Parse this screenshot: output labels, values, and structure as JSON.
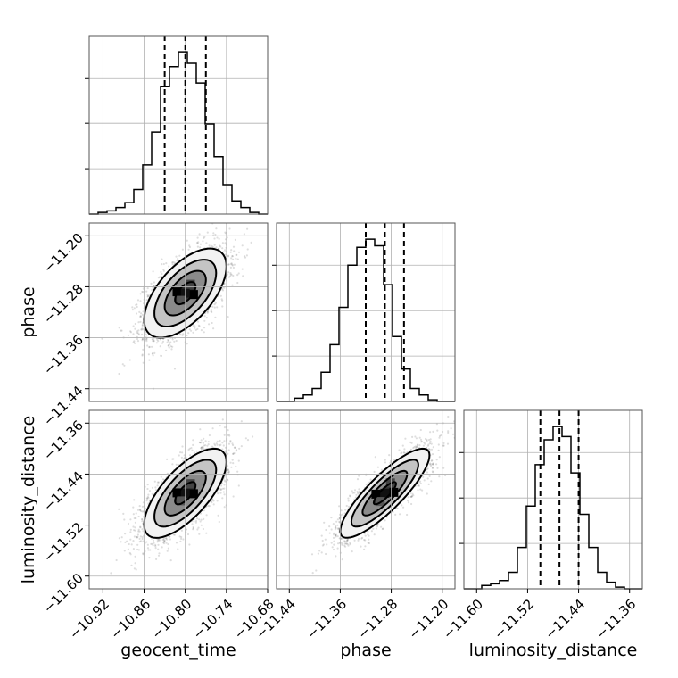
{
  "chart_data": {
    "type": "corner",
    "grid": true,
    "parameters": [
      {
        "name": "geocent_time",
        "range": [
          -10.94,
          -10.68
        ],
        "ticks": [
          -10.92,
          -10.86,
          -10.8,
          -10.74,
          -10.68
        ],
        "tick_labels": [
          "−10.92",
          "−10.86",
          "−10.80",
          "−10.74",
          "−10.68"
        ],
        "quantiles": [
          -10.83,
          -10.8,
          -10.77
        ],
        "hist_counts": [
          0,
          1,
          2,
          4,
          7,
          15,
          30,
          50,
          78,
          90,
          99,
          92,
          80,
          55,
          35,
          18,
          8,
          4,
          1,
          0
        ]
      },
      {
        "name": "phase",
        "range": [
          -11.46,
          -11.18
        ],
        "ticks": [
          -11.44,
          -11.36,
          -11.28,
          -11.2
        ],
        "tick_labels": [
          "−11.44",
          "−11.36",
          "−11.28",
          "−11.20"
        ],
        "quantiles": [
          -11.32,
          -11.29,
          -11.26
        ],
        "hist_counts": [
          0,
          0,
          2,
          4,
          8,
          18,
          35,
          58,
          84,
          95,
          100,
          96,
          72,
          40,
          20,
          8,
          4,
          1,
          0,
          0
        ]
      },
      {
        "name": "luminosity_distance",
        "range": [
          -11.62,
          -11.34
        ],
        "ticks": [
          -11.6,
          -11.52,
          -11.44,
          -11.36
        ],
        "tick_labels": [
          "−11.60",
          "−11.52",
          "−11.44",
          "−11.36"
        ],
        "quantiles": [
          -11.5,
          -11.47,
          -11.44
        ],
        "hist_counts": [
          0,
          0,
          2,
          3,
          5,
          10,
          25,
          50,
          75,
          90,
          98,
          92,
          70,
          45,
          25,
          10,
          4,
          1,
          0,
          0
        ]
      }
    ],
    "pairs": [
      {
        "x": "geocent_time",
        "y": "phase",
        "mean": [
          -10.8,
          -11.29
        ],
        "sd": [
          0.03,
          0.035
        ],
        "rho": 0.6
      },
      {
        "x": "geocent_time",
        "y": "luminosity_distance",
        "mean": [
          -10.8,
          -11.47
        ],
        "sd": [
          0.03,
          0.035
        ],
        "rho": 0.7
      },
      {
        "x": "phase",
        "y": "luminosity_distance",
        "mean": [
          -11.29,
          -11.47
        ],
        "sd": [
          0.035,
          0.035
        ],
        "rho": 0.85
      }
    ]
  }
}
